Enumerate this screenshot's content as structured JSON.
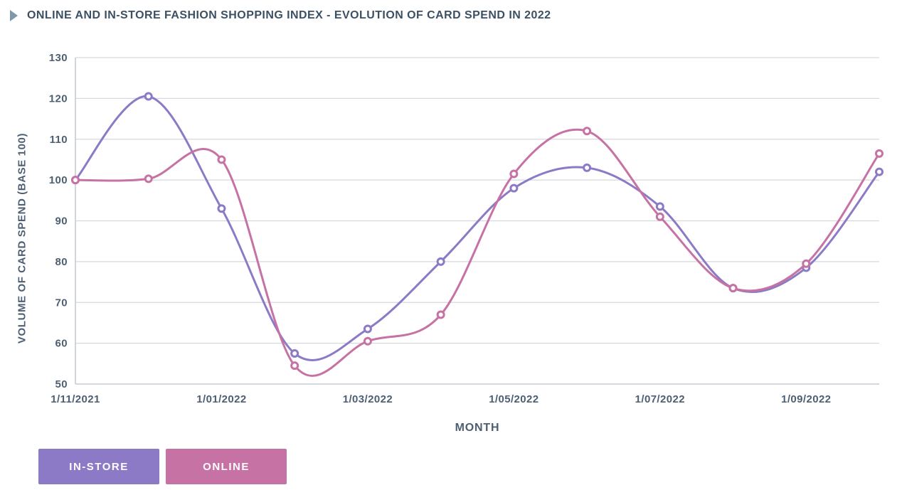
{
  "header": {
    "title": "ONLINE AND IN-STORE FASHION SHOPPING INDEX - EVOLUTION OF CARD SPEND IN 2022"
  },
  "colors": {
    "in_store": "#8c7ac6",
    "online": "#c672a4",
    "title_text": "#3c5064",
    "tick_text": "#4d5f72",
    "gridline": "#d4d9df",
    "axis_line": "#c5ccd4",
    "marker_fill": "#ffffff",
    "title_icon": "#7d97ab",
    "legend_text": "#ffffff"
  },
  "chart_data": {
    "type": "line",
    "x": [
      "1/11/2021",
      "1/12/2021",
      "1/01/2022",
      "1/02/2022",
      "1/03/2022",
      "1/04/2022",
      "1/05/2022",
      "1/06/2022",
      "1/07/2022",
      "1/08/2022",
      "1/09/2022",
      "1/10/2022"
    ],
    "x_tick_labels": [
      "1/11/2021",
      "1/01/2022",
      "1/03/2022",
      "1/05/2022",
      "1/07/2022",
      "1/09/2022"
    ],
    "x_tick_positions": [
      0,
      2,
      4,
      6,
      8,
      10
    ],
    "series": [
      {
        "name": "IN-STORE",
        "color_key": "in_store",
        "values": [
          100,
          120.5,
          93,
          57.5,
          63.5,
          80,
          98,
          103,
          93.5,
          73.5,
          78.5,
          102
        ]
      },
      {
        "name": "ONLINE",
        "color_key": "online",
        "values": [
          100,
          100.3,
          105,
          54.5,
          60.5,
          67,
          101.5,
          112,
          91,
          73.5,
          79.5,
          106.5
        ]
      }
    ],
    "xlabel": "MONTH",
    "ylabel": "VOLUME OF CARD SPEND (BASE 100)",
    "ylim": [
      50,
      130
    ],
    "y_ticks": [
      50,
      60,
      70,
      80,
      90,
      100,
      110,
      120,
      130
    ],
    "grid": "horizontal",
    "legend_position": "bottom-left",
    "curve": "smooth"
  }
}
